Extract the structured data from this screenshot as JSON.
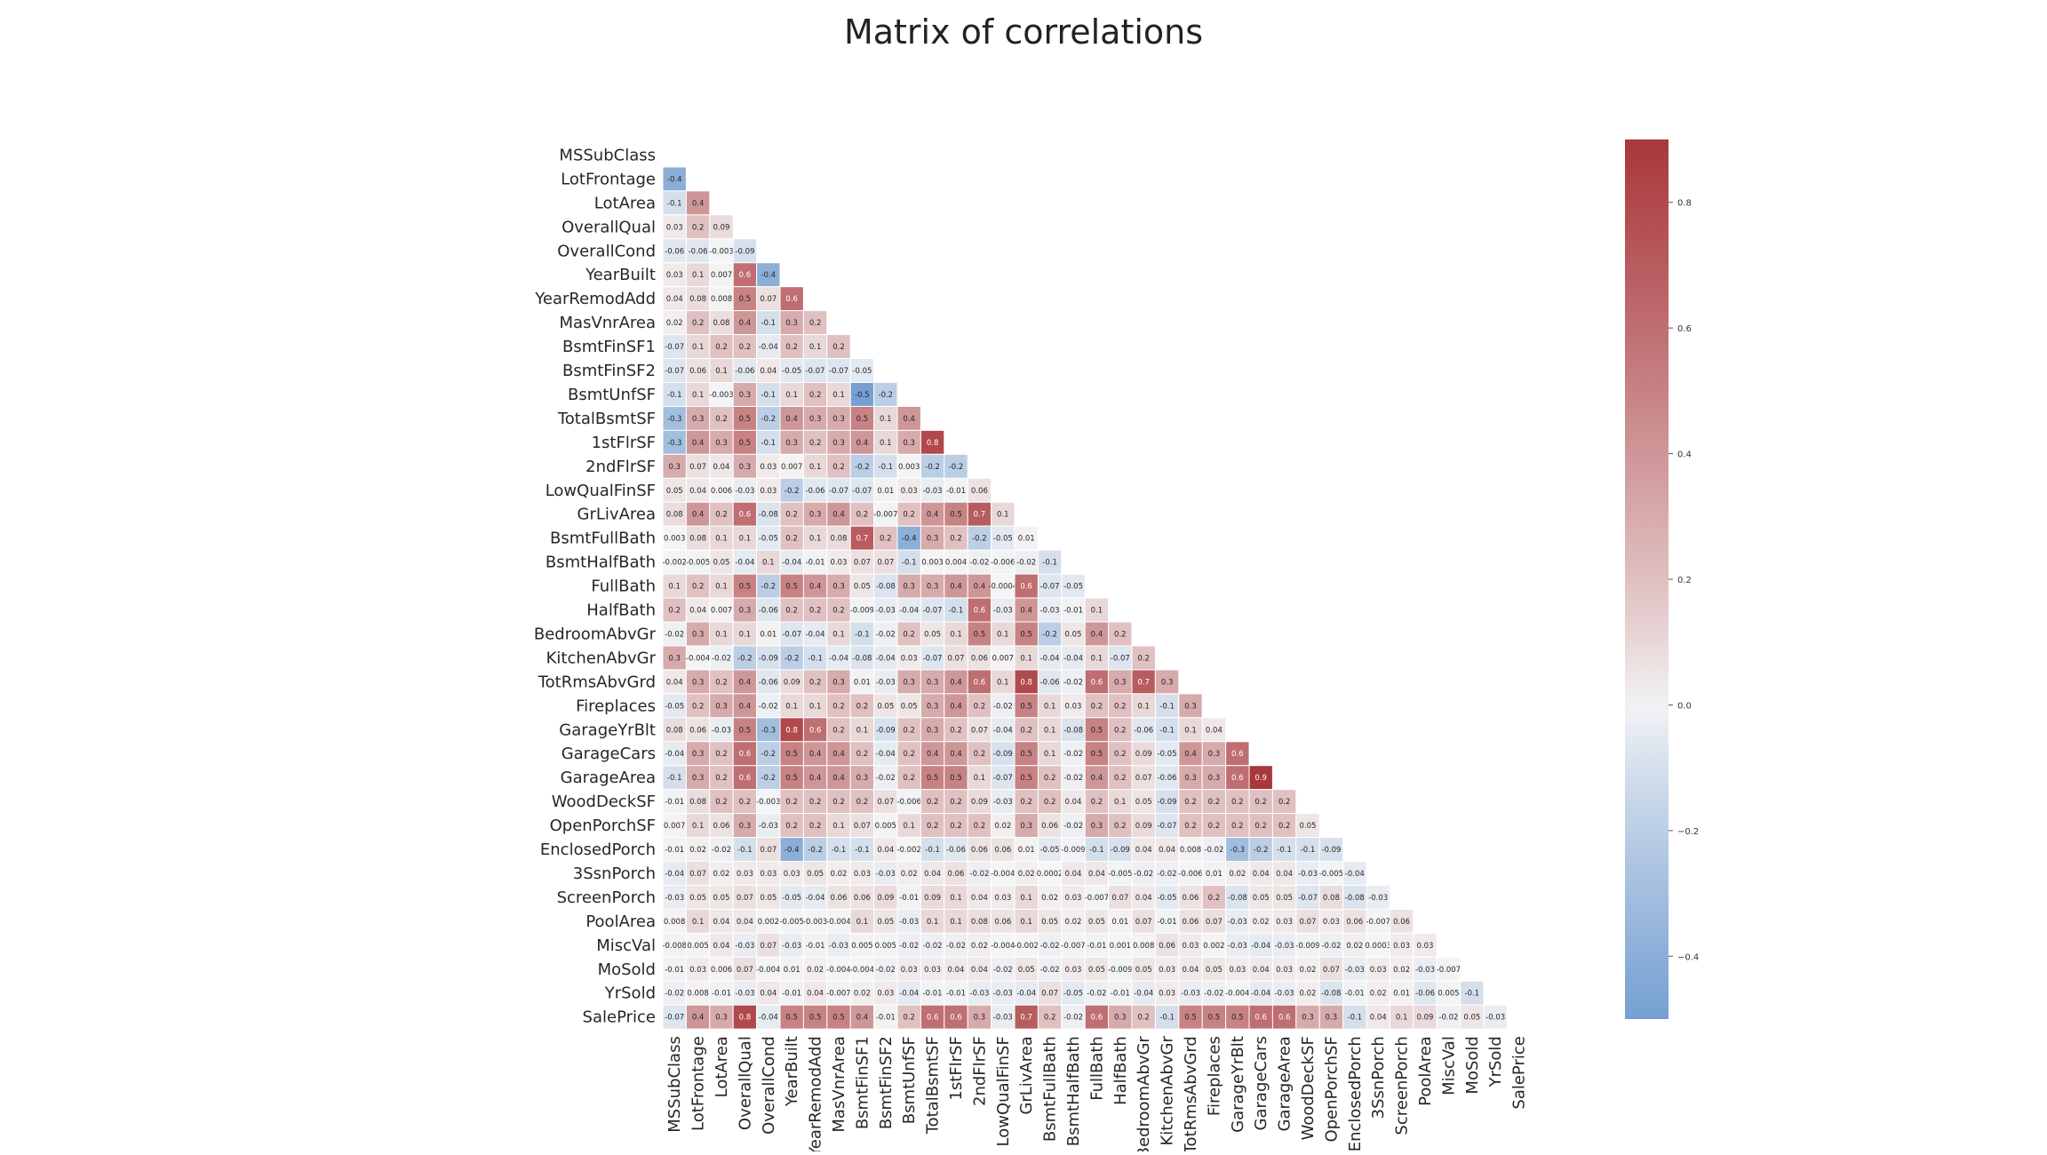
{
  "chart_data": {
    "type": "heatmap",
    "title": "Matrix of correlations",
    "xlabel": "",
    "ylabel": "",
    "mask": "upper-triangle",
    "labels": [
      "MSSubClass",
      "LotFrontage",
      "LotArea",
      "OverallQual",
      "OverallCond",
      "YearBuilt",
      "YearRemodAdd",
      "MasVnrArea",
      "BsmtFinSF1",
      "BsmtFinSF2",
      "BsmtUnfSF",
      "TotalBsmtSF",
      "1stFlrSF",
      "2ndFlrSF",
      "LowQualFinSF",
      "GrLivArea",
      "BsmtFullBath",
      "BsmtHalfBath",
      "FullBath",
      "HalfBath",
      "BedroomAbvGr",
      "KitchenAbvGr",
      "TotRmsAbvGrd",
      "Fireplaces",
      "GarageYrBlt",
      "GarageCars",
      "GarageArea",
      "WoodDeckSF",
      "OpenPorchSF",
      "EnclosedPorch",
      "3SsnPorch",
      "ScreenPorch",
      "PoolArea",
      "MiscVal",
      "MoSold",
      "YrSold",
      "SalePrice"
    ],
    "rows": [
      [],
      [
        "-0.4"
      ],
      [
        "-0.1",
        "0.4"
      ],
      [
        "0.03",
        "0.2",
        "0.09"
      ],
      [
        "-0.06",
        "-0.06",
        "-0.003",
        "-0.09"
      ],
      [
        "0.03",
        "0.1",
        "0.007",
        "0.6",
        "-0.4"
      ],
      [
        "0.04",
        "0.08",
        "0.008",
        "0.5",
        "0.07",
        "0.6"
      ],
      [
        "0.02",
        "0.2",
        "0.08",
        "0.4",
        "-0.1",
        "0.3",
        "0.2"
      ],
      [
        "-0.07",
        "0.1",
        "0.2",
        "0.2",
        "-0.04",
        "0.2",
        "0.1",
        "0.2"
      ],
      [
        "-0.07",
        "0.06",
        "0.1",
        "-0.06",
        "0.04",
        "-0.05",
        "-0.07",
        "-0.07",
        "-0.05"
      ],
      [
        "-0.1",
        "0.1",
        "-0.003",
        "0.3",
        "-0.1",
        "0.1",
        "0.2",
        "0.1",
        "-0.5",
        "-0.2"
      ],
      [
        "-0.3",
        "0.3",
        "0.2",
        "0.5",
        "-0.2",
        "0.4",
        "0.3",
        "0.3",
        "0.5",
        "0.1",
        "0.4"
      ],
      [
        "-0.3",
        "0.4",
        "0.3",
        "0.5",
        "-0.1",
        "0.3",
        "0.2",
        "0.3",
        "0.4",
        "0.1",
        "0.3",
        "0.8"
      ],
      [
        "0.3",
        "0.07",
        "0.04",
        "0.3",
        "0.03",
        "0.007",
        "0.1",
        "0.2",
        "-0.2",
        "-0.1",
        "0.003",
        "-0.2",
        "-0.2"
      ],
      [
        "0.05",
        "0.04",
        "0.006",
        "-0.03",
        "0.03",
        "-0.2",
        "-0.06",
        "-0.07",
        "-0.07",
        "0.01",
        "0.03",
        "-0.03",
        "-0.01",
        "0.06"
      ],
      [
        "0.08",
        "0.4",
        "0.2",
        "0.6",
        "-0.08",
        "0.2",
        "0.3",
        "0.4",
        "0.2",
        "-0.007",
        "0.2",
        "0.4",
        "0.5",
        "0.7",
        "0.1"
      ],
      [
        "0.003",
        "0.08",
        "0.1",
        "0.1",
        "-0.05",
        "0.2",
        "0.1",
        "0.08",
        "0.7",
        "0.2",
        "-0.4",
        "0.3",
        "0.2",
        "-0.2",
        "-0.05",
        "0.01"
      ],
      [
        "-0.002",
        "-0.005",
        "0.05",
        "-0.04",
        "0.1",
        "-0.04",
        "-0.01",
        "0.03",
        "0.07",
        "0.07",
        "-0.1",
        "0.003",
        "0.004",
        "-0.02",
        "-0.006",
        "-0.02",
        "-0.1"
      ],
      [
        "0.1",
        "0.2",
        "0.1",
        "0.5",
        "-0.2",
        "0.5",
        "0.4",
        "0.3",
        "0.05",
        "-0.08",
        "0.3",
        "0.3",
        "0.4",
        "0.4",
        "-0.0004",
        "0.6",
        "-0.07",
        "-0.05"
      ],
      [
        "0.2",
        "0.04",
        "0.007",
        "0.3",
        "-0.06",
        "0.2",
        "0.2",
        "0.2",
        "-0.009",
        "-0.03",
        "-0.04",
        "-0.07",
        "-0.1",
        "0.6",
        "-0.03",
        "0.4",
        "-0.03",
        "-0.01",
        "0.1"
      ],
      [
        "-0.02",
        "0.3",
        "0.1",
        "0.1",
        "0.01",
        "-0.07",
        "-0.04",
        "0.1",
        "-0.1",
        "-0.02",
        "0.2",
        "0.05",
        "0.1",
        "0.5",
        "0.1",
        "0.5",
        "-0.2",
        "0.05",
        "0.4",
        "0.2"
      ],
      [
        "0.3",
        "-0.004",
        "-0.02",
        "-0.2",
        "-0.09",
        "-0.2",
        "-0.1",
        "-0.04",
        "-0.08",
        "-0.04",
        "0.03",
        "-0.07",
        "0.07",
        "0.06",
        "0.007",
        "0.1",
        "-0.04",
        "-0.04",
        "0.1",
        "-0.07",
        "0.2"
      ],
      [
        "0.04",
        "0.3",
        "0.2",
        "0.4",
        "-0.06",
        "0.09",
        "0.2",
        "0.3",
        "0.01",
        "-0.03",
        "0.3",
        "0.3",
        "0.4",
        "0.6",
        "0.1",
        "0.8",
        "-0.06",
        "-0.02",
        "0.6",
        "0.3",
        "0.7",
        "0.3"
      ],
      [
        "-0.05",
        "0.2",
        "0.3",
        "0.4",
        "-0.02",
        "0.1",
        "0.1",
        "0.2",
        "0.2",
        "0.05",
        "0.05",
        "0.3",
        "0.4",
        "0.2",
        "-0.02",
        "0.5",
        "0.1",
        "0.03",
        "0.2",
        "0.2",
        "0.1",
        "-0.1",
        "0.3"
      ],
      [
        "0.08",
        "0.06",
        "-0.03",
        "0.5",
        "-0.3",
        "0.8",
        "0.6",
        "0.2",
        "0.1",
        "-0.09",
        "0.2",
        "0.3",
        "0.2",
        "0.07",
        "-0.04",
        "0.2",
        "0.1",
        "-0.08",
        "0.5",
        "0.2",
        "-0.06",
        "-0.1",
        "0.1",
        "0.04"
      ],
      [
        "-0.04",
        "0.3",
        "0.2",
        "0.6",
        "-0.2",
        "0.5",
        "0.4",
        "0.4",
        "0.2",
        "-0.04",
        "0.2",
        "0.4",
        "0.4",
        "0.2",
        "-0.09",
        "0.5",
        "0.1",
        "-0.02",
        "0.5",
        "0.2",
        "0.09",
        "-0.05",
        "0.4",
        "0.3",
        "0.6"
      ],
      [
        "-0.1",
        "0.3",
        "0.2",
        "0.6",
        "-0.2",
        "0.5",
        "0.4",
        "0.4",
        "0.3",
        "-0.02",
        "0.2",
        "0.5",
        "0.5",
        "0.1",
        "-0.07",
        "0.5",
        "0.2",
        "-0.02",
        "0.4",
        "0.2",
        "0.07",
        "-0.06",
        "0.3",
        "0.3",
        "0.6",
        "0.9"
      ],
      [
        "-0.01",
        "0.08",
        "0.2",
        "0.2",
        "-0.003",
        "0.2",
        "0.2",
        "0.2",
        "0.2",
        "0.07",
        "-0.006",
        "0.2",
        "0.2",
        "0.09",
        "-0.03",
        "0.2",
        "0.2",
        "0.04",
        "0.2",
        "0.1",
        "0.05",
        "-0.09",
        "0.2",
        "0.2",
        "0.2",
        "0.2",
        "0.2"
      ],
      [
        "0.007",
        "0.1",
        "0.06",
        "0.3",
        "-0.03",
        "0.2",
        "0.2",
        "0.1",
        "0.07",
        "0.005",
        "0.1",
        "0.2",
        "0.2",
        "0.2",
        "0.02",
        "0.3",
        "0.06",
        "-0.02",
        "0.3",
        "0.2",
        "0.09",
        "-0.07",
        "0.2",
        "0.2",
        "0.2",
        "0.2",
        "0.2",
        "0.05"
      ],
      [
        "-0.01",
        "0.02",
        "-0.02",
        "-0.1",
        "0.07",
        "-0.4",
        "-0.2",
        "-0.1",
        "-0.1",
        "0.04",
        "-0.002",
        "-0.1",
        "-0.06",
        "0.06",
        "0.06",
        "0.01",
        "-0.05",
        "-0.009",
        "-0.1",
        "-0.09",
        "0.04",
        "0.04",
        "0.008",
        "-0.02",
        "-0.3",
        "-0.2",
        "-0.1",
        "-0.1",
        "-0.09"
      ],
      [
        "-0.04",
        "0.07",
        "0.02",
        "0.03",
        "0.03",
        "0.03",
        "0.05",
        "0.02",
        "0.03",
        "-0.03",
        "0.02",
        "0.04",
        "0.06",
        "-0.02",
        "-0.004",
        "0.02",
        "0.0002",
        "0.04",
        "0.04",
        "-0.005",
        "-0.02",
        "-0.02",
        "-0.006",
        "0.01",
        "0.02",
        "0.04",
        "0.04",
        "-0.03",
        "-0.005",
        "-0.04"
      ],
      [
        "-0.03",
        "0.05",
        "0.05",
        "0.07",
        "0.05",
        "-0.05",
        "-0.04",
        "0.06",
        "0.06",
        "0.09",
        "-0.01",
        "0.09",
        "0.1",
        "0.04",
        "0.03",
        "0.1",
        "0.02",
        "0.03",
        "-0.007",
        "0.07",
        "0.04",
        "-0.05",
        "0.06",
        "0.2",
        "-0.08",
        "0.05",
        "0.05",
        "-0.07",
        "0.08",
        "-0.08",
        "-0.03"
      ],
      [
        "0.008",
        "0.1",
        "0.04",
        "0.04",
        "0.002",
        "-0.005",
        "-0.003",
        "-0.004",
        "0.1",
        "0.05",
        "-0.03",
        "0.1",
        "0.1",
        "0.08",
        "0.06",
        "0.1",
        "0.05",
        "0.02",
        "0.05",
        "0.01",
        "0.07",
        "-0.01",
        "0.06",
        "0.07",
        "-0.03",
        "0.02",
        "0.03",
        "0.07",
        "0.03",
        "0.06",
        "-0.007",
        "0.06"
      ],
      [
        "-0.008",
        "0.005",
        "0.04",
        "-0.03",
        "0.07",
        "-0.03",
        "-0.01",
        "-0.03",
        "0.005",
        "0.005",
        "-0.02",
        "-0.02",
        "-0.02",
        "0.02",
        "-0.004",
        "-0.002",
        "-0.02",
        "-0.007",
        "-0.01",
        "0.001",
        "0.008",
        "0.06",
        "0.03",
        "0.002",
        "-0.03",
        "-0.04",
        "-0.03",
        "-0.009",
        "-0.02",
        "0.02",
        "0.0003",
        "0.03",
        "0.03"
      ],
      [
        "-0.01",
        "0.03",
        "0.006",
        "0.07",
        "-0.004",
        "0.01",
        "0.02",
        "-0.004",
        "-0.004",
        "-0.02",
        "0.03",
        "0.03",
        "0.04",
        "0.04",
        "-0.02",
        "0.05",
        "-0.02",
        "0.03",
        "0.05",
        "-0.009",
        "0.05",
        "0.03",
        "0.04",
        "0.05",
        "0.03",
        "0.04",
        "0.03",
        "0.02",
        "0.07",
        "-0.03",
        "0.03",
        "0.02",
        "-0.03",
        "-0.007"
      ],
      [
        "-0.02",
        "0.008",
        "-0.01",
        "-0.03",
        "0.04",
        "-0.01",
        "0.04",
        "-0.007",
        "0.02",
        "0.03",
        "-0.04",
        "-0.01",
        "-0.01",
        "-0.03",
        "-0.03",
        "-0.04",
        "0.07",
        "-0.05",
        "-0.02",
        "-0.01",
        "-0.04",
        "0.03",
        "-0.03",
        "-0.02",
        "-0.004",
        "-0.04",
        "-0.03",
        "0.02",
        "-0.08",
        "-0.01",
        "0.02",
        "0.01",
        "-0.06",
        "0.005",
        "-0.1"
      ],
      [
        "-0.07",
        "0.4",
        "0.3",
        "0.8",
        "-0.04",
        "0.5",
        "0.5",
        "0.5",
        "0.4",
        "-0.01",
        "0.2",
        "0.6",
        "0.6",
        "0.3",
        "-0.03",
        "0.7",
        "0.2",
        "-0.02",
        "0.6",
        "0.3",
        "0.2",
        "-0.1",
        "0.5",
        "0.5",
        "0.5",
        "0.6",
        "0.6",
        "0.3",
        "0.3",
        "-0.1",
        "0.04",
        "0.1",
        "0.09",
        "-0.02",
        "0.05",
        "-0.03"
      ]
    ],
    "colorbar": {
      "range": [
        -0.5,
        0.9
      ],
      "ticks": [
        0.8,
        0.6,
        0.4,
        0.2,
        0.0,
        -0.2,
        -0.4
      ],
      "tick_labels": [
        "0.8",
        "0.6",
        "0.4",
        "0.2",
        "0.0",
        "−0.2",
        "−0.4"
      ],
      "colormap": "vlag",
      "low_color": "#2369bd",
      "mid_color": "#f5f5f5",
      "high_color": "#a9373b"
    },
    "grid": false,
    "legend": "colorbar-right"
  }
}
